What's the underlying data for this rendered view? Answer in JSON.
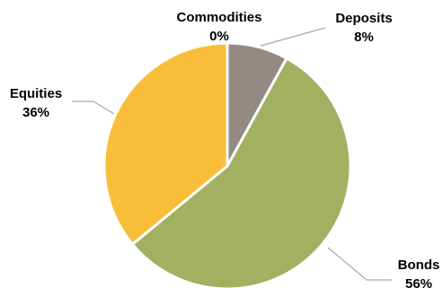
{
  "chart_data": {
    "type": "pie",
    "categories": [
      "Deposits",
      "Bonds",
      "Equities",
      "Commodities"
    ],
    "values": [
      8,
      56,
      36,
      0
    ],
    "value_labels": [
      "8%",
      "56%",
      "36%",
      "0%"
    ],
    "colors": [
      "#948A84",
      "#A2B062",
      "#F9BE39",
      "#7F7F7F"
    ],
    "start_angle_deg": 0,
    "direction": "clockwise",
    "title": "",
    "legend": "none"
  }
}
